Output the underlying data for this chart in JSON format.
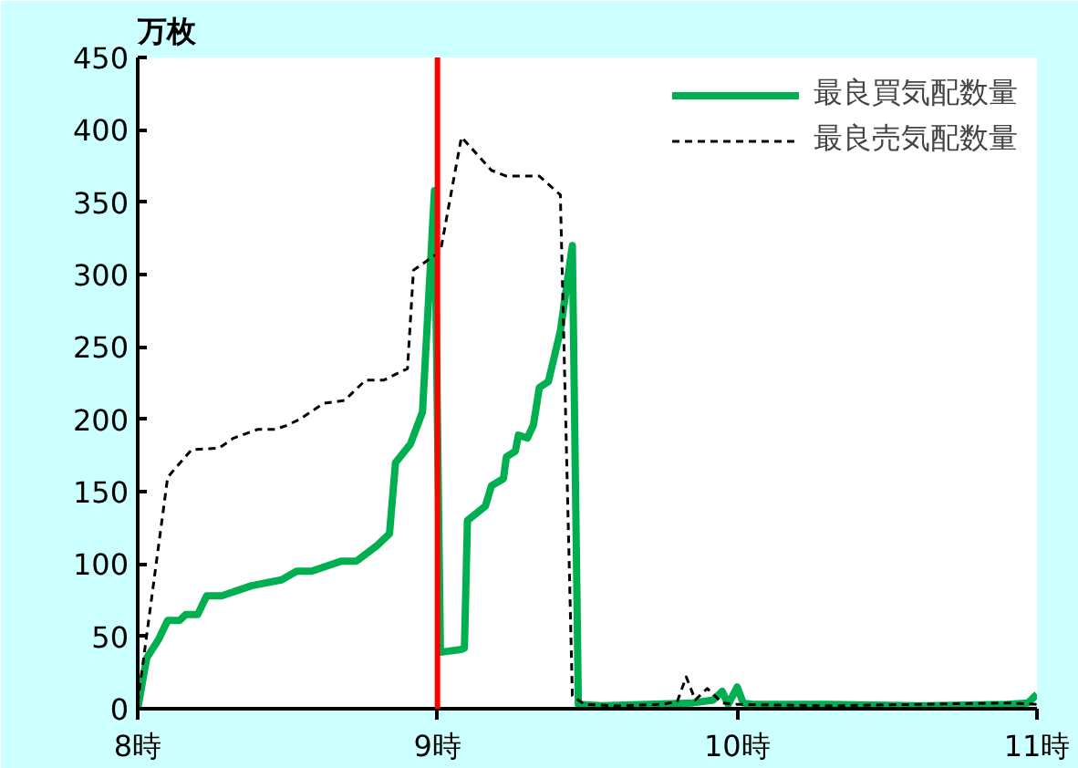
{
  "chart_data": {
    "type": "line",
    "ylabel": "万枚",
    "xlim": [
      8,
      11
    ],
    "ylim": [
      0,
      450
    ],
    "xticks": [
      {
        "value": 8,
        "label": "8時"
      },
      {
        "value": 9,
        "label": "9時"
      },
      {
        "value": 10,
        "label": "10時"
      },
      {
        "value": 11,
        "label": "11時"
      }
    ],
    "yticks": [
      0,
      50,
      100,
      150,
      200,
      250,
      300,
      350,
      400,
      450
    ],
    "grid": false,
    "legend": "top right",
    "ref_lines": [
      {
        "axis": "x",
        "value": 9,
        "color": "#ff0000"
      }
    ],
    "series": [
      {
        "name": "最良買気配数量",
        "color": "#00b050",
        "line_style": "solid",
        "x": [
          8.0,
          8.03,
          8.07,
          8.1,
          8.14,
          8.16,
          8.2,
          8.23,
          8.28,
          8.38,
          8.48,
          8.53,
          8.58,
          8.68,
          8.73,
          8.8,
          8.84,
          8.86,
          8.91,
          8.95,
          8.99,
          9.01,
          9.08,
          9.09,
          9.1,
          9.16,
          9.18,
          9.22,
          9.23,
          9.26,
          9.27,
          9.3,
          9.32,
          9.34,
          9.37,
          9.41,
          9.45,
          9.47,
          9.55,
          9.7,
          9.85,
          9.92,
          9.95,
          9.97,
          10.0,
          10.02,
          10.05,
          10.3,
          10.6,
          10.9,
          10.97,
          11.0
        ],
        "values": [
          0,
          35,
          48,
          61,
          61,
          65,
          65,
          78,
          78,
          85,
          89,
          95,
          95,
          102,
          102,
          113,
          121,
          170,
          183,
          205,
          358,
          39,
          41,
          42,
          130,
          140,
          154,
          159,
          174,
          178,
          189,
          187,
          196,
          222,
          226,
          261,
          320,
          3,
          2,
          3,
          4,
          6,
          12,
          3,
          15,
          4,
          3,
          3,
          2,
          3,
          4,
          10
        ]
      },
      {
        "name": "最良売気配数量",
        "color": "#000000",
        "line_style": "dashed",
        "x": [
          8.0,
          8.1,
          8.18,
          8.27,
          8.32,
          8.4,
          8.46,
          8.5,
          8.54,
          8.62,
          8.69,
          8.76,
          8.82,
          8.9,
          8.92,
          9.01,
          9.08,
          9.18,
          9.23,
          9.34,
          9.41,
          9.45,
          9.49,
          9.6,
          9.75,
          9.8,
          9.83,
          9.86,
          9.9,
          9.95,
          10.0,
          10.3,
          10.6,
          10.9,
          11.0
        ],
        "values": [
          4,
          160,
          179,
          180,
          187,
          193,
          193,
          196,
          200,
          211,
          213,
          227,
          227,
          235,
          303,
          316,
          395,
          372,
          368,
          368,
          355,
          9,
          3,
          2,
          3,
          5,
          22,
          6,
          14,
          4,
          3,
          2,
          3,
          4,
          3
        ]
      }
    ]
  }
}
